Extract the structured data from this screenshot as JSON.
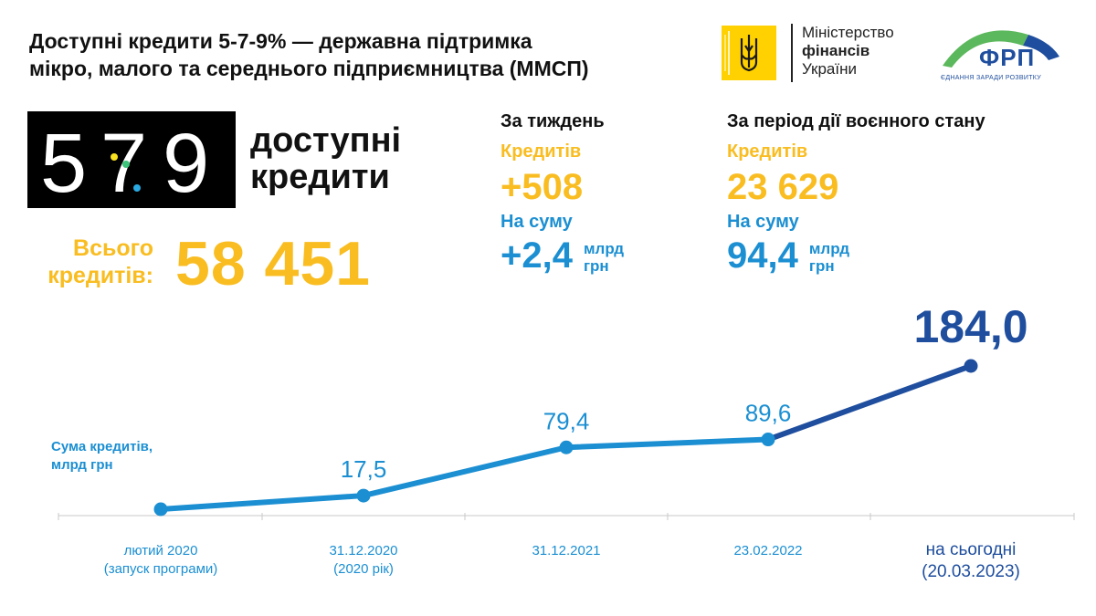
{
  "header": {
    "title_line1": "Доступні кредити 5-7-9% — державна підтримка",
    "title_line2": "мікро, малого та середнього підприємництва (ММСП)"
  },
  "logos": {
    "ministry_line1": "Міністерство",
    "ministry_line2": "фінансів",
    "ministry_line3": "України",
    "ministry_icon": "trident-icon",
    "frp_text": "ФРП",
    "frp_sub": "ЄДНАННЯ ЗАРАДИ РОЗВИТКУ"
  },
  "brand": {
    "digit1": "5",
    "digit2": "7",
    "digit3": "9",
    "caption_line1": "доступні",
    "caption_line2": "кредити"
  },
  "totals": {
    "label_line1": "Всього",
    "label_line2": "кредитів:",
    "value": "58 451"
  },
  "week": {
    "heading": "За тиждень",
    "credits_label": "Кредитів",
    "credits_value": "+508",
    "sum_label": "На суму",
    "sum_value": "+2,4",
    "unit_line1": "млрд",
    "unit_line2": "грн"
  },
  "war_period": {
    "heading": "За період дії воєнного стану",
    "credits_label": "Кредитів",
    "credits_value": "23 629",
    "sum_label": "На суму",
    "sum_value": "94,4",
    "unit_line1": "млрд",
    "unit_line2": "грн"
  },
  "colors": {
    "yellow": "#f9bd21",
    "light_blue": "#1b8fd2",
    "dark_blue": "#1f4e9e",
    "ministry_yellow": "#ffd100",
    "frp_green": "#5cb85c"
  },
  "chart_data": {
    "type": "line",
    "series_label_line1": "Сума кредитів,",
    "series_label_line2": "млрд грн",
    "categories": [
      [
        "лютий 2020",
        "(запуск програми)"
      ],
      [
        "31.12.2020",
        "(2020 рік)"
      ],
      [
        "31.12.2021",
        ""
      ],
      [
        "23.02.2022",
        ""
      ],
      [
        "на сьогодні",
        "(20.03.2023)"
      ]
    ],
    "values": [
      0,
      17.5,
      79.4,
      89.6,
      184.0
    ],
    "value_labels": [
      "",
      "17,5",
      "79,4",
      "89,6",
      "184,0"
    ],
    "ylim": [
      0,
      184
    ],
    "highlight_last": true
  }
}
